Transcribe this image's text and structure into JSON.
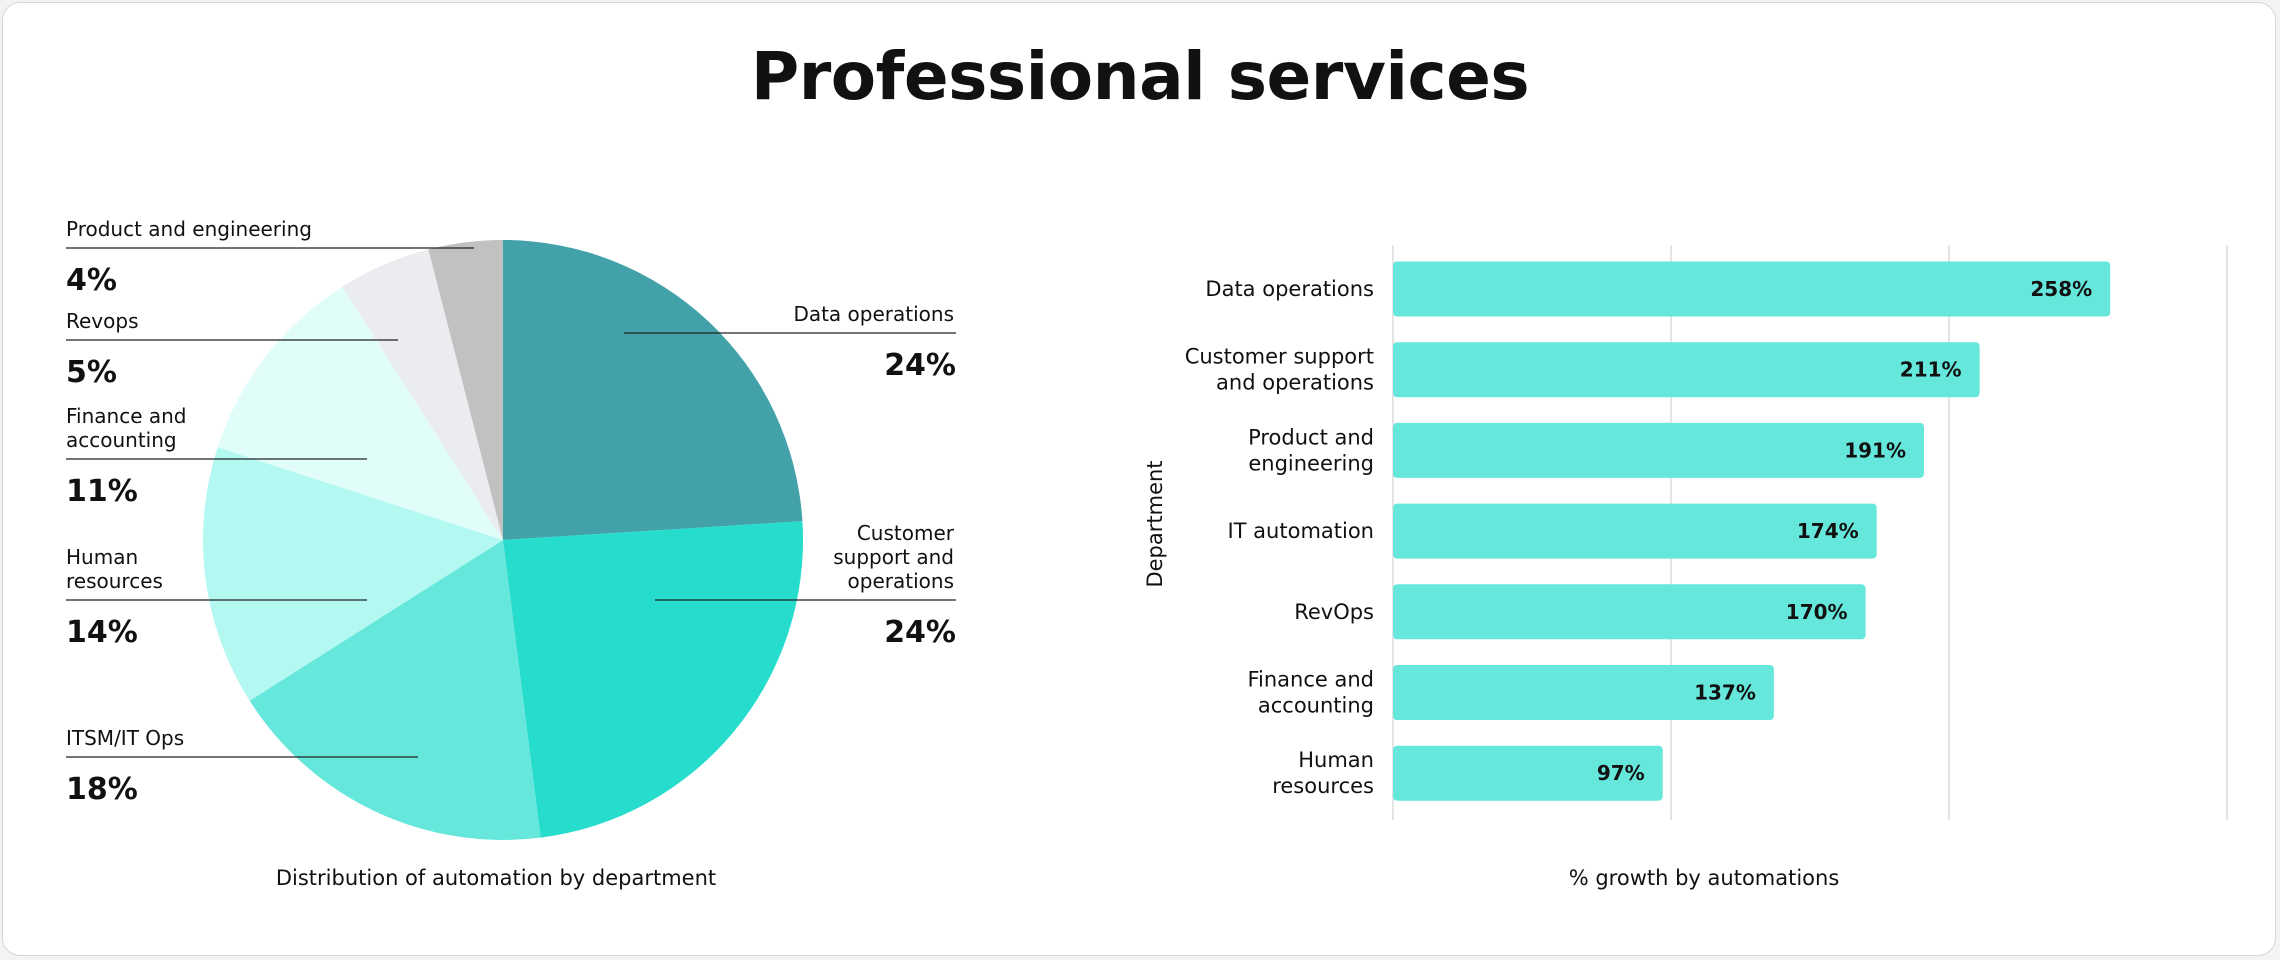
{
  "title": "Professional services",
  "chart_data": [
    {
      "type": "pie",
      "title": "Distribution of automation by department",
      "slices": [
        {
          "label": "Data operations",
          "label_lines": [
            "Data operations"
          ],
          "value": 24,
          "value_label": "24%",
          "color": "#42a1a9"
        },
        {
          "label": "Customer support and operations",
          "label_lines": [
            "Customer",
            "support and",
            "operations"
          ],
          "value": 24,
          "value_label": "24%",
          "color": "#26dccd"
        },
        {
          "label": "ITSM/IT Ops",
          "label_lines": [
            "ITSM/IT Ops"
          ],
          "value": 18,
          "value_label": "18%",
          "color": "#66e7dc"
        },
        {
          "label": "Human resources",
          "label_lines": [
            "Human",
            "resources"
          ],
          "value": 14,
          "value_label": "14%",
          "color": "#b3f8f1"
        },
        {
          "label": "Finance and accounting",
          "label_lines": [
            "Finance and",
            "accounting"
          ],
          "value": 11,
          "value_label": "11%",
          "color": "#e0fdfa"
        },
        {
          "label": "Revops",
          "label_lines": [
            "Revops"
          ],
          "value": 5,
          "value_label": "5%",
          "color": "#ebecef"
        },
        {
          "label": "Product and engineering",
          "label_lines": [
            "Product and engineering"
          ],
          "value": 4,
          "value_label": "4%",
          "color": "#c1c1c1"
        }
      ]
    },
    {
      "type": "bar",
      "orientation": "horizontal",
      "title": "% growth by automations",
      "ylabel": "Department",
      "xlim": [
        0,
        300
      ],
      "grid": true,
      "bar_color": "#66e7dc",
      "categories": [
        "Data operations",
        "Customer support and operations",
        "Product and engineering",
        "IT automation",
        "RevOps",
        "Finance and accounting",
        "Human resources"
      ],
      "category_lines": [
        [
          "Data operations"
        ],
        [
          "Customer support",
          "and operations"
        ],
        [
          "Product and",
          "engineering"
        ],
        [
          "IT automation"
        ],
        [
          "RevOps"
        ],
        [
          "Finance and",
          "accounting"
        ],
        [
          "Human",
          "resources"
        ]
      ],
      "values": [
        258,
        211,
        191,
        174,
        170,
        137,
        97
      ],
      "value_labels": [
        "258%",
        "211%",
        "191%",
        "174%",
        "170%",
        "137%",
        "97%"
      ]
    }
  ]
}
